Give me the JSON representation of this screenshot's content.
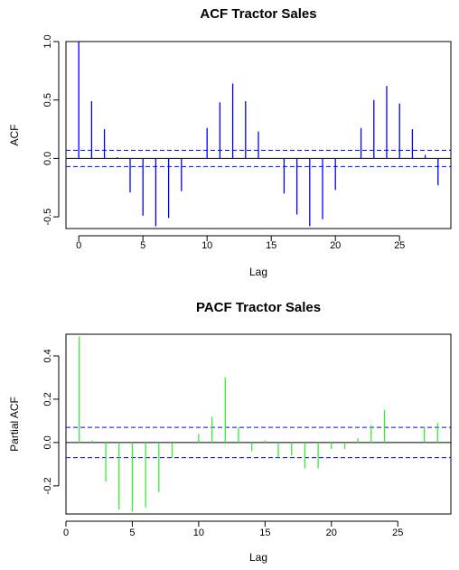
{
  "chart_data": [
    {
      "type": "bar",
      "title": "ACF Tractor Sales",
      "xlabel": "Lag",
      "ylabel": "ACF",
      "xlim": [
        -1,
        29
      ],
      "ylim": [
        -0.6,
        1.0
      ],
      "x_ticks": [
        0,
        5,
        10,
        15,
        20,
        25
      ],
      "x_tick_labels": [
        "0",
        "5",
        "10",
        "15",
        "20",
        "25"
      ],
      "y_ticks": [
        -0.5,
        0.0,
        0.5,
        1.0
      ],
      "y_tick_labels": [
        "-0.5",
        "0.0",
        "0.5",
        "1.0"
      ],
      "bar_color": "#0000ff",
      "confidence_band": 0.07,
      "band_color": "#0000ff",
      "x": [
        0,
        1,
        2,
        3,
        4,
        5,
        6,
        7,
        8,
        9,
        10,
        11,
        12,
        13,
        14,
        15,
        16,
        17,
        18,
        19,
        20,
        21,
        22,
        23,
        24,
        25,
        26,
        27,
        28
      ],
      "values": [
        1.0,
        0.49,
        0.25,
        0.01,
        -0.29,
        -0.49,
        -0.58,
        -0.51,
        -0.28,
        0.0,
        0.26,
        0.48,
        0.64,
        0.49,
        0.23,
        0.0,
        -0.3,
        -0.48,
        -0.58,
        -0.52,
        -0.27,
        0.0,
        0.26,
        0.5,
        0.62,
        0.47,
        0.25,
        0.03,
        -0.23
      ]
    },
    {
      "type": "bar",
      "title": "PACF Tractor Sales",
      "xlabel": "Lag",
      "ylabel": "Partial ACF",
      "xlim": [
        0,
        29
      ],
      "ylim": [
        -0.33,
        0.5
      ],
      "x_ticks": [
        0,
        5,
        10,
        15,
        20,
        25
      ],
      "x_tick_labels": [
        "0",
        "5",
        "10",
        "15",
        "20",
        "25"
      ],
      "y_ticks": [
        -0.2,
        0.0,
        0.2,
        0.4
      ],
      "y_tick_labels": [
        "-0.2",
        "0.0",
        "0.2",
        "0.4"
      ],
      "bar_color": "#33ee33",
      "confidence_band": 0.07,
      "band_color": "#0000ff",
      "x": [
        1,
        2,
        3,
        4,
        5,
        6,
        7,
        8,
        9,
        10,
        11,
        12,
        13,
        14,
        15,
        16,
        17,
        18,
        19,
        20,
        21,
        22,
        23,
        24,
        25,
        26,
        27,
        28
      ],
      "values": [
        0.49,
        0.01,
        -0.18,
        -0.31,
        -0.32,
        -0.3,
        -0.23,
        -0.07,
        0.0,
        0.04,
        0.12,
        0.3,
        0.07,
        -0.04,
        0.01,
        -0.07,
        -0.06,
        -0.12,
        -0.12,
        -0.03,
        -0.03,
        0.02,
        0.08,
        0.15,
        0.0,
        0.0,
        0.07,
        0.09
      ]
    }
  ]
}
